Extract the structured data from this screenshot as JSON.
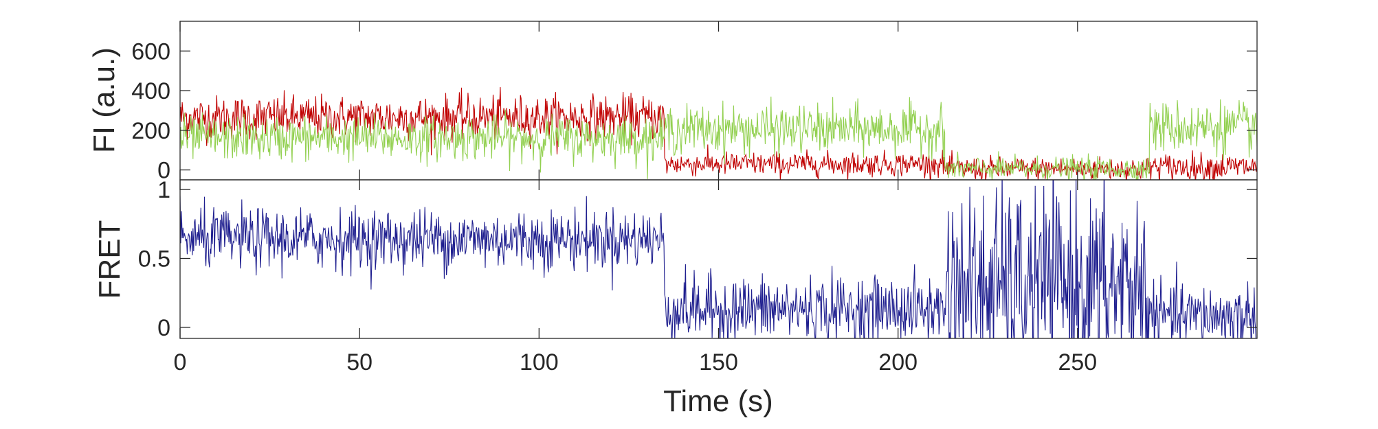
{
  "chart_data": [
    {
      "type": "line",
      "panel": "fluorescence",
      "ylabel": "FI (a.u.)",
      "xlabel": "",
      "xlim": [
        0,
        300
      ],
      "ylim": [
        -50,
        750
      ],
      "yticks": [
        0,
        200,
        400,
        600
      ],
      "ytick_labels": [
        "0",
        "200",
        "400",
        "600"
      ],
      "grid": false,
      "series": [
        {
          "color": "#c00000",
          "segments": [
            {
              "t_start": 0,
              "t_end": 135,
              "mean": 265,
              "noise_sd": 55
            },
            {
              "t_start": 135,
              "t_end": 213,
              "mean": 30,
              "noise_sd": 30
            },
            {
              "t_start": 213,
              "t_end": 270,
              "mean": 5,
              "noise_sd": 30
            },
            {
              "t_start": 270,
              "t_end": 300,
              "mean": 15,
              "noise_sd": 35
            }
          ]
        },
        {
          "color": "#92d050",
          "segments": [
            {
              "t_start": 0,
              "t_end": 135,
              "mean": 160,
              "noise_sd": 55
            },
            {
              "t_start": 135,
              "t_end": 213,
              "mean": 205,
              "noise_sd": 60
            },
            {
              "t_start": 213,
              "t_end": 270,
              "mean": 5,
              "noise_sd": 30
            },
            {
              "t_start": 270,
              "t_end": 300,
              "mean": 215,
              "noise_sd": 65
            }
          ]
        }
      ]
    },
    {
      "type": "line",
      "panel": "fret",
      "ylabel": "FRET",
      "xlabel": "Time (s)",
      "xlim": [
        0,
        300
      ],
      "ylim": [
        -0.08,
        1.07
      ],
      "xticks": [
        0,
        50,
        100,
        150,
        200,
        250
      ],
      "xtick_labels": [
        "0",
        "50",
        "100",
        "150",
        "200",
        "250"
      ],
      "yticks": [
        0,
        0.5,
        1
      ],
      "ytick_labels": [
        "0",
        "0.5",
        "1"
      ],
      "grid": false,
      "series": [
        {
          "color": "#1f1f8f",
          "segments": [
            {
              "t_start": 0,
              "t_end": 135,
              "mean": 0.64,
              "noise_sd": 0.11
            },
            {
              "t_start": 135,
              "t_end": 213,
              "mean": 0.13,
              "noise_sd": 0.12
            },
            {
              "t_start": 213,
              "t_end": 270,
              "mean": 0.3,
              "noise_sd": 0.35
            },
            {
              "t_start": 270,
              "t_end": 300,
              "mean": 0.08,
              "noise_sd": 0.12
            }
          ]
        }
      ]
    }
  ]
}
